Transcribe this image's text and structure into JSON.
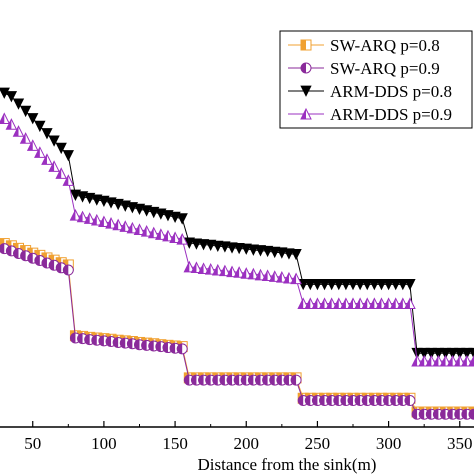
{
  "chart_data": {
    "type": "line",
    "title": "",
    "xlabel": "Distance from the sink(m)",
    "ylabel": "",
    "xlim": [
      27,
      360
    ],
    "ylim": [
      0,
      1
    ],
    "x_ticks": [
      50,
      100,
      150,
      200,
      250,
      300,
      350
    ],
    "x_tick_labels": [
      "50",
      "100",
      "150",
      "200",
      "250",
      "300",
      "350"
    ],
    "grid": false,
    "legend_position": "top-right",
    "series": [
      {
        "name": "SW-ARQ p=0.8",
        "marker": "half-square",
        "color": "#f0a030",
        "x": [
          30,
          35,
          40,
          45,
          50,
          55,
          60,
          65,
          70,
          75,
          80,
          85,
          90,
          95,
          100,
          105,
          110,
          115,
          120,
          125,
          130,
          135,
          140,
          145,
          150,
          155,
          160,
          165,
          170,
          175,
          180,
          185,
          190,
          195,
          200,
          205,
          210,
          215,
          220,
          225,
          230,
          235,
          240,
          245,
          250,
          255,
          260,
          265,
          270,
          275,
          280,
          285,
          290,
          295,
          300,
          305,
          310,
          315,
          320,
          325,
          330,
          335,
          340,
          345,
          350,
          355,
          360
        ],
        "y": [
          0.528,
          0.521,
          0.513,
          0.506,
          0.498,
          0.491,
          0.483,
          0.476,
          0.468,
          0.461,
          0.239,
          0.237,
          0.234,
          0.232,
          0.23,
          0.228,
          0.225,
          0.223,
          0.221,
          0.218,
          0.216,
          0.214,
          0.211,
          0.209,
          0.207,
          0.205,
          0.107,
          0.107,
          0.107,
          0.107,
          0.107,
          0.107,
          0.107,
          0.107,
          0.107,
          0.107,
          0.107,
          0.107,
          0.107,
          0.107,
          0.107,
          0.107,
          0.043,
          0.043,
          0.043,
          0.043,
          0.043,
          0.043,
          0.043,
          0.043,
          0.043,
          0.043,
          0.043,
          0.043,
          0.043,
          0.043,
          0.043,
          0.043,
          0.0,
          0.0,
          0.0,
          0.0,
          0.0,
          0.0,
          0.0,
          0.0,
          0.0
        ]
      },
      {
        "name": "SW-ARQ p=0.9",
        "marker": "half-circle",
        "color": "#8a2a9a",
        "x": [
          30,
          35,
          40,
          45,
          50,
          55,
          60,
          65,
          70,
          75,
          80,
          85,
          90,
          95,
          100,
          105,
          110,
          115,
          120,
          125,
          130,
          135,
          140,
          145,
          150,
          155,
          160,
          165,
          170,
          175,
          180,
          185,
          190,
          195,
          200,
          205,
          210,
          215,
          220,
          225,
          230,
          235,
          240,
          245,
          250,
          255,
          260,
          265,
          270,
          275,
          280,
          285,
          290,
          295,
          300,
          305,
          310,
          315,
          320,
          325,
          330,
          335,
          340,
          345,
          350,
          355,
          360
        ],
        "y": [
          0.512,
          0.505,
          0.497,
          0.49,
          0.482,
          0.475,
          0.467,
          0.46,
          0.452,
          0.445,
          0.232,
          0.23,
          0.227,
          0.225,
          0.223,
          0.221,
          0.218,
          0.216,
          0.214,
          0.211,
          0.209,
          0.207,
          0.205,
          0.202,
          0.2,
          0.198,
          0.1,
          0.1,
          0.1,
          0.1,
          0.1,
          0.1,
          0.1,
          0.1,
          0.1,
          0.1,
          0.1,
          0.1,
          0.1,
          0.1,
          0.1,
          0.1,
          0.036,
          0.036,
          0.036,
          0.036,
          0.036,
          0.036,
          0.036,
          0.036,
          0.036,
          0.036,
          0.036,
          0.036,
          0.036,
          0.036,
          0.036,
          0.036,
          -0.007,
          -0.007,
          -0.007,
          -0.007,
          -0.007,
          -0.007,
          -0.007,
          -0.007,
          -0.007
        ]
      },
      {
        "name": "ARM-DDS p=0.8",
        "marker": "triangle-down",
        "color": "#000000",
        "x": [
          30,
          35,
          40,
          45,
          50,
          55,
          60,
          65,
          70,
          75,
          80,
          85,
          90,
          95,
          100,
          105,
          110,
          115,
          120,
          125,
          130,
          135,
          140,
          145,
          150,
          155,
          160,
          165,
          170,
          175,
          180,
          185,
          190,
          195,
          200,
          205,
          210,
          215,
          220,
          225,
          230,
          235,
          240,
          245,
          250,
          255,
          260,
          265,
          270,
          275,
          280,
          285,
          290,
          295,
          300,
          305,
          310,
          315,
          320,
          325,
          330,
          335,
          340,
          345,
          350,
          355,
          360
        ],
        "y": [
          1.0,
          0.989,
          0.966,
          0.943,
          0.92,
          0.896,
          0.873,
          0.85,
          0.827,
          0.804,
          0.68,
          0.675,
          0.67,
          0.665,
          0.661,
          0.656,
          0.651,
          0.646,
          0.641,
          0.636,
          0.631,
          0.626,
          0.621,
          0.616,
          0.611,
          0.606,
          0.53,
          0.527,
          0.525,
          0.523,
          0.52,
          0.518,
          0.515,
          0.513,
          0.511,
          0.508,
          0.506,
          0.504,
          0.501,
          0.499,
          0.496,
          0.494,
          0.4,
          0.4,
          0.4,
          0.4,
          0.4,
          0.4,
          0.4,
          0.4,
          0.4,
          0.4,
          0.4,
          0.4,
          0.4,
          0.4,
          0.4,
          0.4,
          0.184,
          0.184,
          0.184,
          0.184,
          0.184,
          0.184,
          0.184,
          0.184,
          0.184
        ]
      },
      {
        "name": "ARM-DDS p=0.9",
        "marker": "triangle-up",
        "color": "#9b30c0",
        "x": [
          30,
          35,
          40,
          45,
          50,
          55,
          60,
          65,
          70,
          75,
          80,
          85,
          90,
          95,
          100,
          105,
          110,
          115,
          120,
          125,
          130,
          135,
          140,
          145,
          150,
          155,
          160,
          165,
          170,
          175,
          180,
          185,
          190,
          195,
          200,
          205,
          210,
          215,
          220,
          225,
          230,
          235,
          240,
          245,
          250,
          255,
          260,
          265,
          270,
          275,
          280,
          285,
          290,
          295,
          300,
          305,
          310,
          315,
          320,
          325,
          330,
          335,
          340,
          345,
          350,
          355,
          360
        ],
        "y": [
          0.92,
          0.902,
          0.88,
          0.858,
          0.836,
          0.814,
          0.792,
          0.77,
          0.748,
          0.726,
          0.617,
          0.612,
          0.607,
          0.602,
          0.597,
          0.592,
          0.587,
          0.582,
          0.577,
          0.572,
          0.567,
          0.562,
          0.557,
          0.552,
          0.547,
          0.542,
          0.455,
          0.453,
          0.45,
          0.448,
          0.445,
          0.443,
          0.44,
          0.438,
          0.435,
          0.433,
          0.43,
          0.428,
          0.425,
          0.423,
          0.42,
          0.418,
          0.34,
          0.34,
          0.34,
          0.34,
          0.34,
          0.34,
          0.34,
          0.34,
          0.34,
          0.34,
          0.34,
          0.34,
          0.34,
          0.34,
          0.34,
          0.34,
          0.16,
          0.16,
          0.16,
          0.16,
          0.16,
          0.16,
          0.16,
          0.16,
          0.16
        ]
      }
    ]
  }
}
